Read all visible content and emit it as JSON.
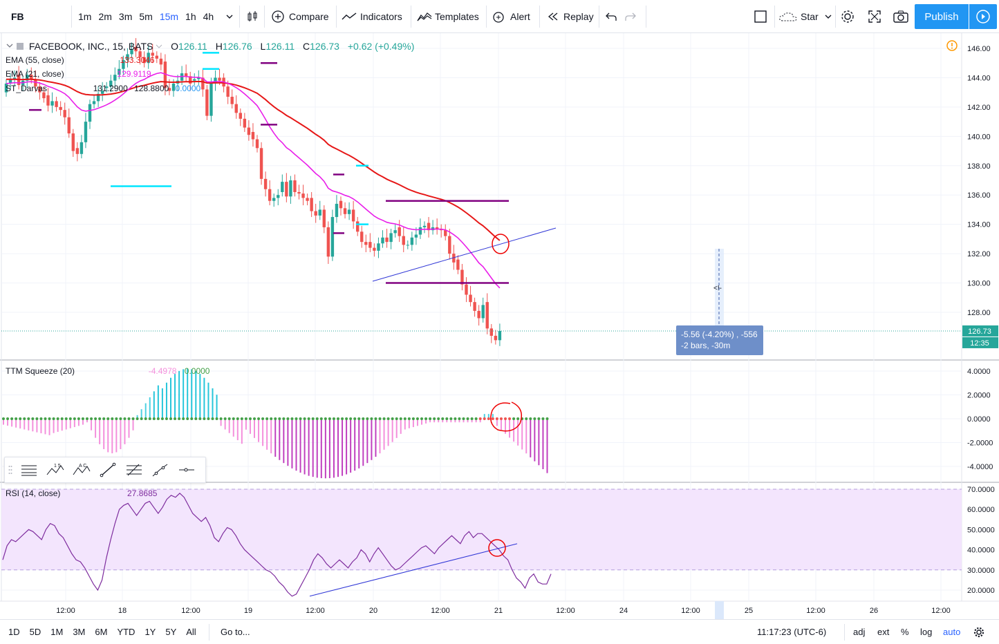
{
  "toolbar": {
    "symbol": "FB",
    "timeframes": [
      "1m",
      "2m",
      "3m",
      "5m",
      "15m",
      "1h",
      "4h"
    ],
    "active_timeframe": "15m",
    "compare": "Compare",
    "indicators": "Indicators",
    "templates": "Templates",
    "alert": "Alert",
    "replay": "Replay",
    "star": "Star",
    "publish": "Publish"
  },
  "legend": {
    "title": "FACEBOOK, INC., 15, BATS",
    "o_label": "O",
    "o": "126.11",
    "h_label": "H",
    "h": "126.76",
    "l_label": "L",
    "l": "126.11",
    "c_label": "C",
    "c": "126.73",
    "change": "+0.62 (+0.49%)",
    "ema55": "EMA (55, close)",
    "ema55_val": "133.3046",
    "ema21": "EMA (21, close)",
    "ema21_val": "129.9119",
    "darvas": "ST_Darvas",
    "darvas_v1": "131.2900",
    "darvas_v2": "128.8800",
    "darvas_v3": "0.0000"
  },
  "ttm": {
    "name": "TTM Squeeze (20)",
    "v1": "-4.4978",
    "v2": "0.0000"
  },
  "rsi": {
    "name": "RSI (14, close)",
    "value": "27.8685"
  },
  "measure": {
    "line1": "-5.56 (-4.20%) , -556",
    "line2": "-2 bars, -30m",
    "cursor": "<!-"
  },
  "price_axis": {
    "main": [
      "146.00",
      "144.00",
      "142.00",
      "140.00",
      "138.00",
      "136.00",
      "134.00",
      "132.00",
      "130.00",
      "128.00"
    ],
    "last": "126.73",
    "countdown": "12:35",
    "ttm": [
      "4.0000",
      "2.0000",
      "0.0000",
      "-2.0000",
      "-4.0000"
    ],
    "rsi": [
      "70.0000",
      "60.0000",
      "50.0000",
      "40.0000",
      "30.0000",
      "20.0000"
    ]
  },
  "time_axis": [
    "12:00",
    "18",
    "12:00",
    "19",
    "12:00",
    "20",
    "12:00",
    "21",
    "12:00",
    "24",
    "12:00",
    "25",
    "12:00",
    "26",
    "12:00"
  ],
  "bottom": {
    "ranges": [
      "1D",
      "5D",
      "1M",
      "3M",
      "6M",
      "YTD",
      "1Y",
      "5Y",
      "All"
    ],
    "goto": "Go to...",
    "time": "11:17:23 (UTC-6)",
    "adj": "adj",
    "ext": "ext",
    "pct": "%",
    "log": "log",
    "auto": "auto"
  },
  "colors": {
    "up": "#26a69a",
    "down": "#ef5350",
    "ema55": "#e61717",
    "ema21": "#e91ee9",
    "darvas": "#800080",
    "cyan": "#00e5ff",
    "trend": "#2f36d6",
    "rsi": "#7e2d9e",
    "rsi_band": "#f3e5fd",
    "ttm_pos": "#4dd0e1",
    "ttm_neg": "#f48fdc",
    "ttm_dot": "#43a047",
    "accent": "#2962ff"
  }
}
